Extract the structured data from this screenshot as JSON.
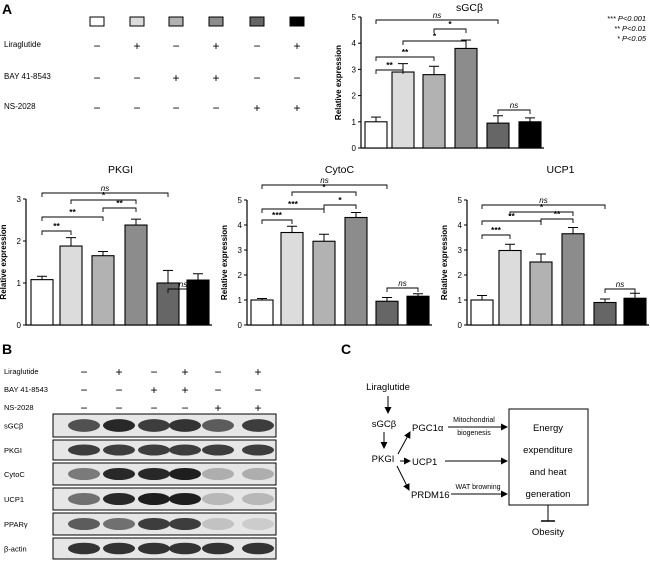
{
  "panels": {
    "a": "A",
    "b": "B",
    "c": "C"
  },
  "conditions": [
    {
      "fill": "#ffffff",
      "liraglutide": "−",
      "bay": "−",
      "ns2028": "−"
    },
    {
      "fill": "#dcdcdc",
      "liraglutide": "+",
      "bay": "−",
      "ns2028": "−"
    },
    {
      "fill": "#b2b2b2",
      "liraglutide": "−",
      "bay": "+",
      "ns2028": "−"
    },
    {
      "fill": "#8c8c8c",
      "liraglutide": "+",
      "bay": "+",
      "ns2028": "−"
    },
    {
      "fill": "#666666",
      "liraglutide": "−",
      "bay": "−",
      "ns2028": "+"
    },
    {
      "fill": "#000000",
      "liraglutide": "+",
      "bay": "−",
      "ns2028": "+"
    }
  ],
  "treatment_labels": [
    "Liraglutide",
    "BAY 41-8543",
    "NS-2028"
  ],
  "significance_legend": [
    "*** P<0.001",
    "** P<0.01",
    "* P<0.05"
  ],
  "chart_data": [
    {
      "type": "bar",
      "title": "sGCβ",
      "ylabel": "Relative expression",
      "ylim": [
        0,
        5
      ],
      "yticks": [
        0,
        1,
        2,
        3,
        4,
        5
      ],
      "values": [
        1.0,
        2.9,
        2.8,
        3.8,
        0.95,
        1.0
      ],
      "errors": [
        0.18,
        0.32,
        0.32,
        0.32,
        0.28,
        0.15
      ],
      "annotations": [
        {
          "from": 0,
          "to": 1,
          "label": "**"
        },
        {
          "from": 0,
          "to": 2,
          "label": "**"
        },
        {
          "from": 1,
          "to": 3,
          "label": "*"
        },
        {
          "from": 2,
          "to": 3,
          "label": "*"
        },
        {
          "from": 4,
          "to": 5,
          "label": "ns"
        },
        {
          "from": 0,
          "to": 4,
          "label": "ns"
        }
      ]
    },
    {
      "type": "bar",
      "title": "PKGI",
      "ylabel": "Relative expression",
      "ylim": [
        0,
        3
      ],
      "yticks": [
        0,
        1,
        2,
        3
      ],
      "values": [
        1.08,
        1.88,
        1.65,
        2.38,
        1.0,
        1.07
      ],
      "errors": [
        0.08,
        0.2,
        0.1,
        0.14,
        0.3,
        0.15
      ],
      "annotations": [
        {
          "from": 0,
          "to": 1,
          "label": "**"
        },
        {
          "from": 0,
          "to": 2,
          "label": "**"
        },
        {
          "from": 1,
          "to": 3,
          "label": "*"
        },
        {
          "from": 2,
          "to": 3,
          "label": "**"
        },
        {
          "from": 4,
          "to": 5,
          "label": "ns"
        },
        {
          "from": 0,
          "to": 4,
          "label": "ns"
        }
      ]
    },
    {
      "type": "bar",
      "title": "CytoC",
      "ylabel": "Relative expression",
      "ylim": [
        0,
        5
      ],
      "yticks": [
        0,
        1,
        2,
        3,
        4,
        5
      ],
      "values": [
        1.0,
        3.7,
        3.35,
        4.3,
        0.95,
        1.15
      ],
      "errors": [
        0.06,
        0.25,
        0.28,
        0.2,
        0.15,
        0.1
      ],
      "annotations": [
        {
          "from": 0,
          "to": 1,
          "label": "***"
        },
        {
          "from": 0,
          "to": 2,
          "label": "***"
        },
        {
          "from": 1,
          "to": 3,
          "label": "*"
        },
        {
          "from": 2,
          "to": 3,
          "label": "*"
        },
        {
          "from": 4,
          "to": 5,
          "label": "ns"
        },
        {
          "from": 0,
          "to": 4,
          "label": "ns"
        }
      ]
    },
    {
      "type": "bar",
      "title": "UCP1",
      "ylabel": "Relative expression",
      "ylim": [
        0,
        5
      ],
      "yticks": [
        0,
        1,
        2,
        3,
        4,
        5
      ],
      "values": [
        1.0,
        2.98,
        2.52,
        3.65,
        0.9,
        1.07
      ],
      "errors": [
        0.18,
        0.25,
        0.32,
        0.25,
        0.14,
        0.2
      ],
      "annotations": [
        {
          "from": 0,
          "to": 1,
          "label": "***"
        },
        {
          "from": 0,
          "to": 2,
          "label": "**"
        },
        {
          "from": 1,
          "to": 3,
          "label": "*"
        },
        {
          "from": 2,
          "to": 3,
          "label": "**"
        },
        {
          "from": 4,
          "to": 5,
          "label": "ns"
        },
        {
          "from": 0,
          "to": 4,
          "label": "ns"
        }
      ]
    }
  ],
  "western": {
    "proteins": [
      "sGCβ",
      "PKGI",
      "CytoC",
      "UCP1",
      "PPARγ",
      "β-actin"
    ],
    "intensities": [
      [
        0.75,
        0.95,
        0.85,
        0.9,
        0.7,
        0.85
      ],
      [
        0.85,
        0.85,
        0.85,
        0.85,
        0.85,
        0.85
      ],
      [
        0.55,
        0.95,
        0.95,
        1.0,
        0.3,
        0.3
      ],
      [
        0.6,
        0.95,
        1.0,
        1.0,
        0.25,
        0.25
      ],
      [
        0.7,
        0.6,
        0.85,
        0.85,
        0.2,
        0.15
      ],
      [
        0.9,
        0.9,
        0.9,
        0.9,
        0.9,
        0.9
      ]
    ]
  },
  "pathway": {
    "liraglutide": "Liraglutide",
    "sgcb": "sGCβ",
    "pkgi": "PKGI",
    "pgc1a": "PGC1α",
    "ucp1": "UCP1",
    "prdm16": "PRDM16",
    "mito_1": "Mitochondrial",
    "mito_2": "biogenesis",
    "wat": "WAT browning",
    "box_lines": [
      "Energy",
      "expenditure",
      "and heat",
      "generation"
    ],
    "obesity": "Obesity"
  }
}
